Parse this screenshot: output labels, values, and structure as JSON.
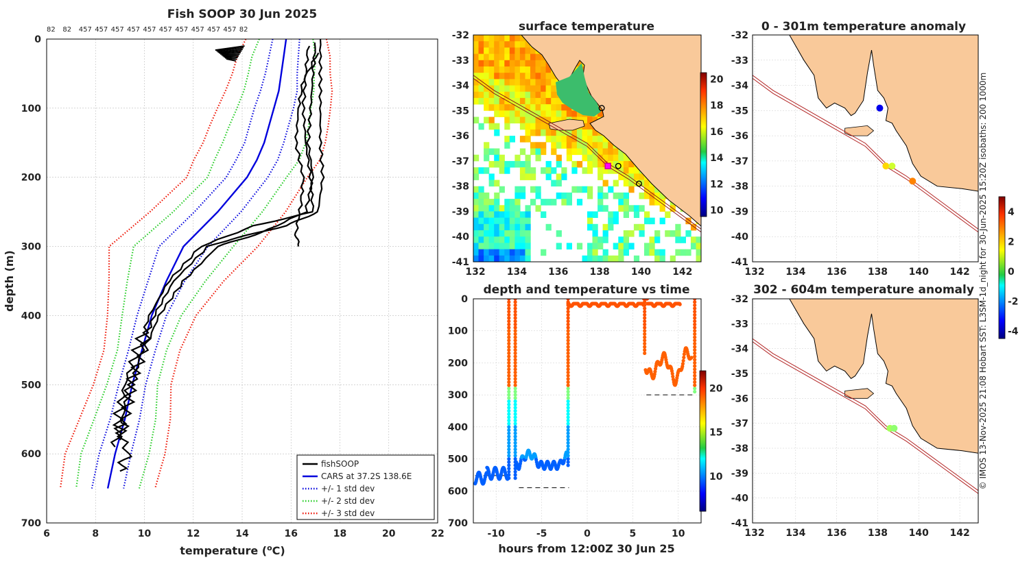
{
  "credit": "© IMOS 13-Nov-2025 21:08 Hobart SST: L3SM-1d_night for 30-Jun-2025 15:20Z isobaths: 200  1000m",
  "profile": {
    "title": "Fish SOOP 30 Jun 2025",
    "xlabel": "temperature (",
    "xlabel_sup": "o",
    "xlabel_end": "C)",
    "ylabel": "depth (m)",
    "xlim": [
      6,
      22
    ],
    "ylim": [
      700,
      0
    ],
    "xticks": [
      "6",
      "8",
      "10",
      "12",
      "14",
      "16",
      "18",
      "20",
      "22"
    ],
    "yticks": [
      "0",
      "100",
      "200",
      "300",
      "400",
      "500",
      "600",
      "700"
    ],
    "counts": [
      "82",
      "82",
      "457",
      "457",
      "457",
      "457",
      "457",
      "457",
      "457",
      "457",
      "457",
      "457",
      "82"
    ],
    "legend": [
      {
        "label": "fishSOOP",
        "color": "#000000",
        "style": "solid"
      },
      {
        "label": "CARS at 37.2S 138.6E",
        "color": "#0000dd",
        "style": "solid"
      },
      {
        "label": "+/- 1 std dev",
        "color": "#0000dd",
        "style": "dotted"
      },
      {
        "label": "+/- 2 std dev",
        "color": "#22cc22",
        "style": "dotted"
      },
      {
        "label": "+/- 3 std dev",
        "color": "#ee1100",
        "style": "dotted"
      }
    ],
    "cars": {
      "depth": [
        0,
        25,
        50,
        75,
        100,
        125,
        150,
        175,
        200,
        250,
        300,
        350,
        400,
        450,
        500,
        550,
        600,
        650
      ],
      "temp": [
        15.8,
        15.7,
        15.6,
        15.5,
        15.3,
        15.1,
        14.9,
        14.6,
        14.2,
        13.0,
        11.6,
        10.9,
        10.3,
        9.9,
        9.5,
        9.2,
        8.8,
        8.5
      ]
    },
    "std": {
      "depth": [
        0,
        25,
        50,
        75,
        100,
        125,
        150,
        175,
        200,
        250,
        300,
        350,
        400,
        450,
        500,
        550,
        600,
        650
      ],
      "sd": [
        0.55,
        0.6,
        0.65,
        0.75,
        0.8,
        0.8,
        0.8,
        0.85,
        0.85,
        0.95,
        1.0,
        0.75,
        0.6,
        0.55,
        0.55,
        0.6,
        0.65,
        0.65
      ]
    },
    "fish": [
      {
        "depth": [
          0,
          50,
          100,
          150,
          200,
          250,
          270,
          290,
          300,
          350,
          400,
          450,
          500,
          550,
          580
        ],
        "temp": [
          17.2,
          17.2,
          17.2,
          17.2,
          17.3,
          17.1,
          15.8,
          13.5,
          12.6,
          11.2,
          10.4,
          9.9,
          9.5,
          9.2,
          9.0
        ]
      },
      {
        "depth": [
          5,
          50,
          100,
          150,
          200,
          250,
          280,
          300,
          350,
          400,
          450,
          500,
          550,
          590
        ],
        "temp": [
          17.0,
          16.9,
          16.8,
          16.7,
          16.9,
          16.6,
          14.8,
          13.0,
          11.6,
          10.6,
          10.0,
          9.4,
          9.1,
          8.8
        ]
      },
      {
        "depth": [
          10,
          50,
          100,
          150,
          200,
          250,
          270,
          300,
          350,
          400,
          450,
          500,
          550,
          600,
          625
        ],
        "temp": [
          16.7,
          16.6,
          16.5,
          16.6,
          16.8,
          16.9,
          14.5,
          12.3,
          11.0,
          10.2,
          9.7,
          9.2,
          8.9,
          9.3,
          9.0
        ]
      },
      {
        "depth": [
          20,
          60,
          100,
          150,
          200,
          240,
          280,
          300
        ],
        "temp": [
          17.1,
          16.5,
          16.3,
          16.2,
          16.5,
          16.4,
          16.2,
          16.3
        ]
      }
    ],
    "surface_blob": {
      "depth": [
        16,
        30
      ],
      "temp": [
        12.9,
        14.1
      ]
    }
  },
  "sst_map": {
    "title": "surface temperature",
    "xticks": [
      "132",
      "134",
      "136",
      "138",
      "140",
      "142"
    ],
    "yticks": [
      "-32",
      "-33",
      "-34",
      "-35",
      "-36",
      "-37",
      "-38",
      "-39",
      "-40",
      "-41"
    ],
    "colorbar_ticks": [
      "20",
      "18",
      "16",
      "14",
      "12",
      "10"
    ],
    "clim": [
      9.5,
      20.5
    ],
    "stations": [
      {
        "lon": 138.5,
        "lat": -37.2,
        "marker": "square"
      },
      {
        "lon": 139.0,
        "lat": -37.2,
        "marker": "circle"
      },
      {
        "lon": 140.0,
        "lat": -37.9,
        "marker": "circle"
      },
      {
        "lon": 138.2,
        "lat": -34.9,
        "marker": "circle"
      }
    ]
  },
  "time_series": {
    "title": "depth and temperature vs time",
    "xlabel": "hours from 12:00Z 30 Jun 25",
    "xticks": [
      "-10",
      "-5",
      "0",
      "5",
      "10"
    ],
    "yticks": [
      "0",
      "100",
      "200",
      "300",
      "400",
      "500",
      "600",
      "700"
    ],
    "xlim": [
      -12.5,
      12.5
    ],
    "ylim": [
      700,
      0
    ],
    "colorbar_ticks": [
      "20",
      "15",
      "10"
    ],
    "clim": [
      6,
      22
    ],
    "bottom_lines": [
      {
        "t0": -12.3,
        "t1": -8.5,
        "depth": 552
      },
      {
        "t0": -7.5,
        "t1": -2,
        "depth": 590
      },
      {
        "t0": 6.5,
        "t1": 11.8,
        "depth": 300
      }
    ]
  },
  "anom_map_1": {
    "title": "0 - 301m temperature anomaly",
    "xticks": [
      "132",
      "134",
      "136",
      "138",
      "140",
      "142"
    ],
    "yticks": [
      "-32",
      "-33",
      "-34",
      "-35",
      "-36",
      "-37",
      "-38",
      "-39",
      "-40",
      "-41"
    ],
    "points": [
      {
        "lon": 138.2,
        "lat": -34.9,
        "anom": -3.5
      },
      {
        "lon": 138.5,
        "lat": -37.2,
        "anom": 1.8
      },
      {
        "lon": 138.8,
        "lat": -37.2,
        "anom": 1.0
      },
      {
        "lon": 139.8,
        "lat": -37.8,
        "anom": 2.6
      }
    ]
  },
  "anom_map_2": {
    "title": "302 - 604m temperature anomaly",
    "xticks": [
      "132",
      "134",
      "136",
      "138",
      "140",
      "142"
    ],
    "yticks": [
      "-32",
      "-33",
      "-34",
      "-35",
      "-36",
      "-37",
      "-38",
      "-39",
      "-40",
      "-41"
    ],
    "points": [
      {
        "lon": 138.7,
        "lat": -37.2,
        "anom": 0.6
      },
      {
        "lon": 138.9,
        "lat": -37.2,
        "anom": 0.4
      }
    ]
  },
  "anom_colorbar": {
    "ticks": [
      "4",
      "2",
      "0",
      "-2",
      "-4"
    ],
    "clim": [
      -4.5,
      5
    ]
  },
  "chart_data": [
    {
      "type": "line",
      "title": "Fish SOOP 30 Jun 2025",
      "xlabel": "temperature (oC)",
      "ylabel": "depth (m)",
      "xlim": [
        6,
        22
      ],
      "ylim": [
        700,
        0
      ],
      "series": [
        {
          "name": "fishSOOP"
        },
        {
          "name": "CARS at 37.2S 138.6E"
        },
        {
          "name": "+/- 1 std dev"
        },
        {
          "name": "+/- 2 std dev"
        },
        {
          "name": "+/- 3 std dev"
        }
      ]
    },
    {
      "type": "heatmap",
      "title": "surface temperature",
      "xlim": [
        132,
        143
      ],
      "ylim": [
        -41,
        -32
      ]
    },
    {
      "type": "scatter",
      "title": "depth and temperature vs time",
      "xlabel": "hours from 12:00Z 30 Jun 25",
      "xlim": [
        -12.5,
        12.5
      ],
      "ylim": [
        700,
        0
      ]
    },
    {
      "type": "scatter",
      "title": "0 - 301m temperature anomaly",
      "xlim": [
        132,
        143
      ],
      "ylim": [
        -41,
        -32
      ]
    },
    {
      "type": "scatter",
      "title": "302 - 604m temperature anomaly",
      "xlim": [
        132,
        143
      ],
      "ylim": [
        -41,
        -32
      ]
    }
  ]
}
